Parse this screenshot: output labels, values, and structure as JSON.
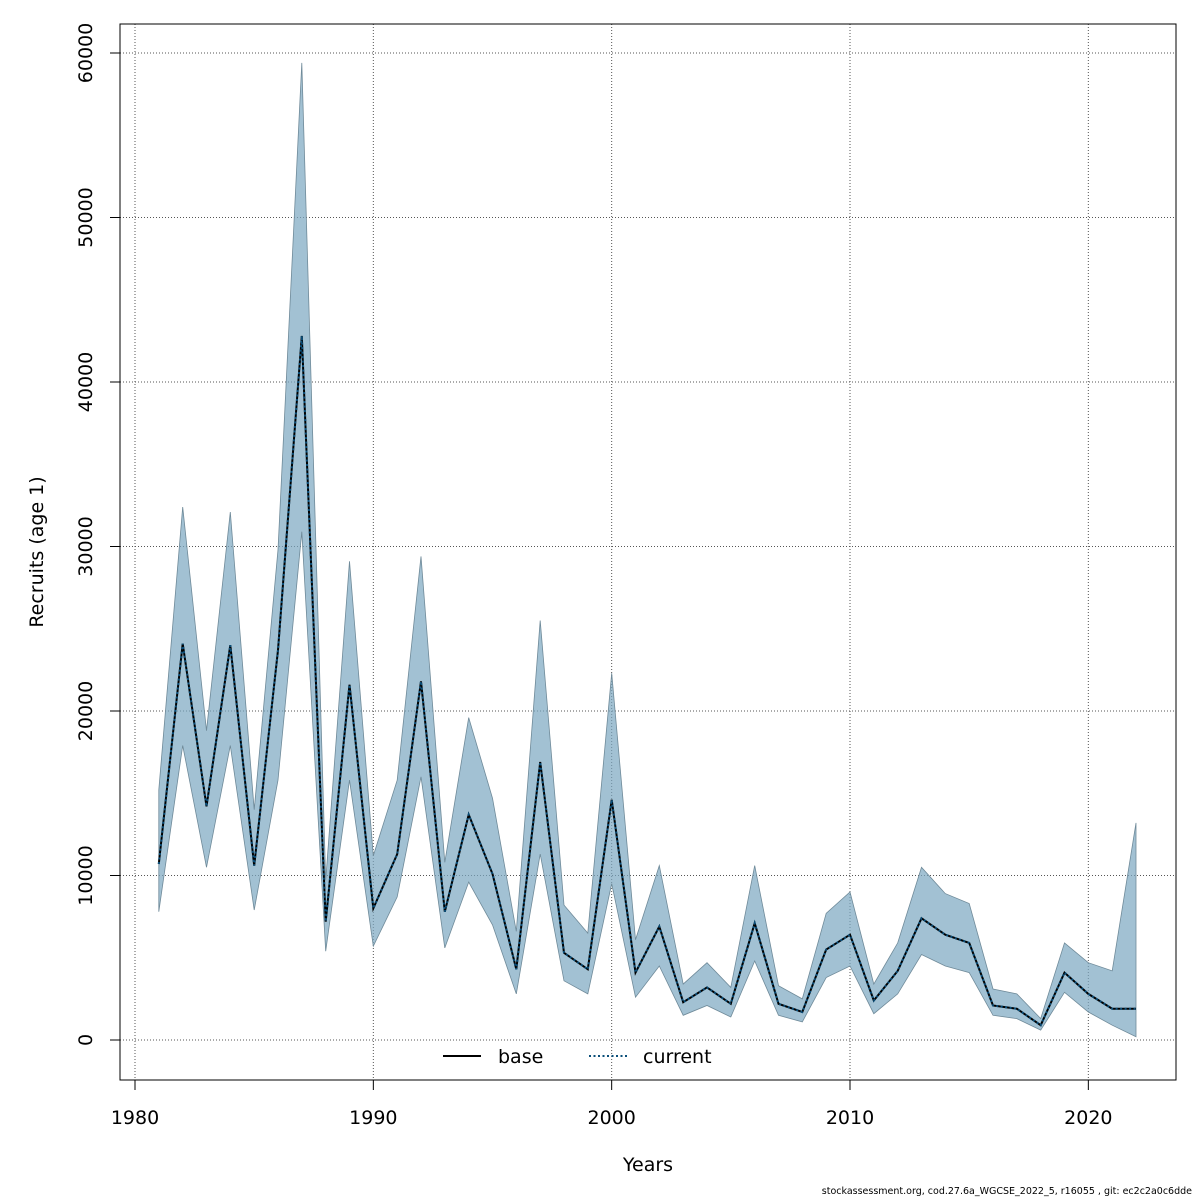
{
  "chart_data": {
    "type": "line",
    "title": "",
    "xlabel": "Years",
    "ylabel": "Recruits (age 1)",
    "xlim": [
      1980,
      2022
    ],
    "ylim": [
      0,
      60000
    ],
    "x_ticks": [
      1980,
      1990,
      2000,
      2010,
      2020
    ],
    "y_ticks": [
      0,
      10000,
      20000,
      30000,
      40000,
      50000,
      60000
    ],
    "grid": true,
    "legend_position": "bottom-center",
    "x": [
      1981,
      1982,
      1983,
      1984,
      1985,
      1986,
      1987,
      1988,
      1989,
      1990,
      1991,
      1992,
      1993,
      1994,
      1995,
      1996,
      1997,
      1998,
      1999,
      2000,
      2001,
      2002,
      2003,
      2004,
      2005,
      2006,
      2007,
      2008,
      2009,
      2010,
      2011,
      2012,
      2013,
      2014,
      2015,
      2016,
      2017,
      2018,
      2019,
      2020,
      2021,
      2022
    ],
    "series": [
      {
        "name": "base",
        "style": "solid",
        "color": "#000000",
        "values": [
          10700,
          24100,
          14200,
          24000,
          10600,
          23700,
          42800,
          7200,
          21600,
          8000,
          11300,
          21800,
          7800,
          13700,
          10100,
          4300,
          16900,
          5300,
          4300,
          14600,
          4100,
          6900,
          2300,
          3200,
          2200,
          7100,
          2200,
          1700,
          5500,
          6400,
          2400,
          4200,
          7400,
          6400,
          5900,
          2100,
          1900,
          900,
          4100,
          2800,
          1900,
          1900
        ]
      },
      {
        "name": "current",
        "style": "dotted",
        "color": "#0b4f7a",
        "values": [
          10700,
          24100,
          14200,
          24000,
          10600,
          23700,
          42800,
          7200,
          21600,
          8000,
          11300,
          21800,
          7800,
          13700,
          10100,
          4300,
          16900,
          5300,
          4300,
          14600,
          4100,
          6900,
          2300,
          3200,
          2200,
          7100,
          2200,
          1700,
          5500,
          6400,
          2400,
          4200,
          7400,
          6400,
          5900,
          2100,
          1900,
          900,
          4100,
          2800,
          1900,
          1900
        ]
      }
    ],
    "band": {
      "color": "#7ba7c0",
      "lower": [
        7800,
        17900,
        10500,
        17900,
        7900,
        15800,
        30900,
        5400,
        15800,
        5700,
        8700,
        16000,
        5600,
        9600,
        7000,
        2800,
        11300,
        3600,
        2800,
        9500,
        2600,
        4500,
        1500,
        2100,
        1400,
        4800,
        1500,
        1100,
        3800,
        4500,
        1600,
        2800,
        5200,
        4500,
        4100,
        1500,
        1300,
        600,
        2900,
        1700,
        900,
        200
      ],
      "upper": [
        15200,
        32400,
        18800,
        32100,
        14000,
        29800,
        59400,
        9700,
        29100,
        11200,
        15800,
        29400,
        10800,
        19600,
        14700,
        6600,
        25500,
        8200,
        6500,
        22300,
        6100,
        10600,
        3400,
        4700,
        3200,
        10600,
        3300,
        2500,
        7700,
        9000,
        3400,
        5900,
        10500,
        8900,
        8300,
        3100,
        2800,
        1300,
        5900,
        4700,
        4200,
        13200
      ]
    }
  },
  "legend": {
    "items": [
      {
        "label": "base",
        "style": "solid",
        "color": "#000000"
      },
      {
        "label": "current",
        "style": "dotted",
        "color": "#0b4f7a"
      }
    ]
  },
  "footer": {
    "text": "stockassessment.org, cod.27.6a_WGCSE_2022_5, r16055 , git: ec2c2a0c6dde"
  }
}
